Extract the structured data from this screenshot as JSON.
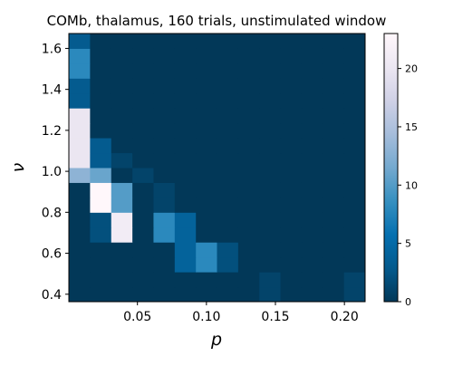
{
  "chart_data": {
    "type": "heatmap",
    "title": "COMb, thalamus, 160 trials, unstimulated window",
    "xlabel": "p",
    "ylabel": "ν",
    "x_centers": [
      0.008,
      0.0233,
      0.0387,
      0.054,
      0.0693,
      0.0847,
      0.1,
      0.1153,
      0.1307,
      0.146,
      0.1613,
      0.1767,
      0.192,
      0.2073
    ],
    "y_centers": [
      0.4,
      0.4727,
      0.5455,
      0.6182,
      0.6909,
      0.7636,
      0.8364,
      0.9091,
      0.9818,
      1.0545,
      1.1273,
      1.2,
      1.2727,
      1.3455,
      1.4182,
      1.4909,
      1.5636,
      1.6364
    ],
    "xlim": [
      0.0003,
      0.215
    ],
    "ylim": [
      0.3636,
      1.6727
    ],
    "x_ticks": [
      0.05,
      0.1,
      0.15,
      0.2
    ],
    "x_tick_labels": [
      "0.05",
      "0.10",
      "0.15",
      "0.20"
    ],
    "y_ticks": [
      0.4,
      0.6,
      0.8,
      1.0,
      1.2,
      1.4,
      1.6
    ],
    "y_tick_labels": [
      "0.4",
      "0.6",
      "0.8",
      "1.0",
      "1.2",
      "1.4",
      "1.6"
    ],
    "values": [
      [
        0,
        0,
        0,
        0,
        0,
        0,
        0,
        0,
        0,
        1,
        0,
        0,
        0,
        1
      ],
      [
        0,
        0,
        0,
        0,
        0,
        0,
        0,
        0,
        0,
        1,
        0,
        0,
        0,
        1
      ],
      [
        0,
        0,
        0,
        0,
        0,
        4,
        8,
        2,
        0,
        0,
        0,
        0,
        0,
        0
      ],
      [
        0,
        0,
        0,
        0,
        0,
        4,
        8,
        2,
        0,
        0,
        0,
        0,
        0,
        0
      ],
      [
        0,
        2,
        21,
        0,
        8,
        4,
        0,
        0,
        0,
        0,
        0,
        0,
        0,
        0
      ],
      [
        0,
        2,
        21,
        0,
        8,
        4,
        0,
        0,
        0,
        0,
        0,
        0,
        0,
        0
      ],
      [
        0,
        23,
        10,
        0,
        1,
        0,
        0,
        0,
        0,
        0,
        0,
        0,
        0,
        0
      ],
      [
        0,
        23,
        10,
        0,
        1,
        0,
        0,
        0,
        0,
        0,
        0,
        0,
        0,
        0
      ],
      [
        13,
        11,
        0,
        1,
        0,
        0,
        0,
        0,
        0,
        0,
        0,
        0,
        0,
        0
      ],
      [
        20,
        3,
        1,
        0,
        0,
        0,
        0,
        0,
        0,
        0,
        0,
        0,
        0,
        0
      ],
      [
        20,
        3,
        0,
        0,
        0,
        0,
        0,
        0,
        0,
        0,
        0,
        0,
        0,
        0
      ],
      [
        20,
        0,
        0,
        0,
        0,
        0,
        0,
        0,
        0,
        0,
        0,
        0,
        0,
        0
      ],
      [
        20,
        0,
        0,
        0,
        0,
        0,
        0,
        0,
        0,
        0,
        0,
        0,
        0,
        0
      ],
      [
        3,
        0,
        0,
        0,
        0,
        0,
        0,
        0,
        0,
        0,
        0,
        0,
        0,
        0
      ],
      [
        3,
        0,
        0,
        0,
        0,
        0,
        0,
        0,
        0,
        0,
        0,
        0,
        0,
        0
      ],
      [
        8,
        0,
        0,
        0,
        0,
        0,
        0,
        0,
        0,
        0,
        0,
        0,
        0,
        0
      ],
      [
        8,
        0,
        0,
        0,
        0,
        0,
        0,
        0,
        0,
        0,
        0,
        0,
        0,
        0
      ],
      [
        3,
        0,
        0,
        0,
        0,
        0,
        0,
        0,
        0,
        0,
        0,
        0,
        0,
        0
      ]
    ],
    "vmin": 0,
    "vmax": 23,
    "colormap": "PuBu_r",
    "colormap_stops": [
      "#023858",
      "#045a8d",
      "#0570b0",
      "#3690c0",
      "#74a9cf",
      "#a6bddb",
      "#d0d1e6",
      "#ece7f2",
      "#fff7fb"
    ],
    "colorbar_ticks": [
      0,
      5,
      10,
      15,
      20
    ],
    "colorbar_tick_labels": [
      "0",
      "5",
      "10",
      "15",
      "20"
    ],
    "grid": false
  }
}
